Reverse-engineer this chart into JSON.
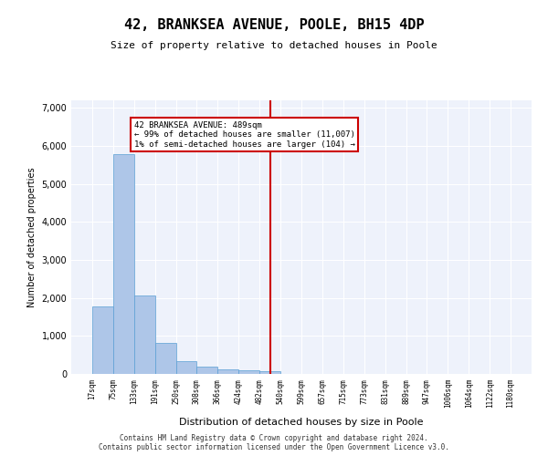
{
  "title": "42, BRANKSEA AVENUE, POOLE, BH15 4DP",
  "subtitle": "Size of property relative to detached houses in Poole",
  "xlabel": "Distribution of detached houses by size in Poole",
  "ylabel": "Number of detached properties",
  "bar_values": [
    1780,
    5780,
    2060,
    820,
    340,
    190,
    115,
    100,
    80,
    0,
    0,
    0,
    0,
    0,
    0,
    0,
    0,
    0,
    0,
    0
  ],
  "categories": [
    "17sqm",
    "75sqm",
    "133sqm",
    "191sqm",
    "250sqm",
    "308sqm",
    "366sqm",
    "424sqm",
    "482sqm",
    "540sqm",
    "599sqm",
    "657sqm",
    "715sqm",
    "773sqm",
    "831sqm",
    "889sqm",
    "947sqm",
    "1006sqm",
    "1064sqm",
    "1122sqm",
    "1180sqm"
  ],
  "bar_color": "#aec6e8",
  "bar_edge_color": "#5a9fd4",
  "highlight_bar_index": 8,
  "vline_x": 8.5,
  "vline_color": "#cc0000",
  "annotation_text": "42 BRANKSEA AVENUE: 489sqm\n← 99% of detached houses are smaller (11,007)\n1% of semi-detached houses are larger (104) →",
  "annotation_box_color": "#cc0000",
  "ylim": [
    0,
    7200
  ],
  "yticks": [
    0,
    1000,
    2000,
    3000,
    4000,
    5000,
    6000,
    7000
  ],
  "background_color": "#eef2fb",
  "grid_color": "#ffffff",
  "footer": "Contains HM Land Registry data © Crown copyright and database right 2024.\nContains public sector information licensed under the Open Government Licence v3.0."
}
